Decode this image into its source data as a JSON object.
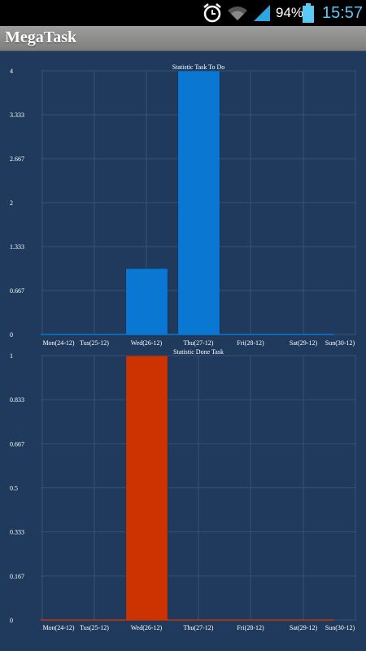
{
  "status_bar": {
    "battery_percent": "94%",
    "time": "15:57",
    "icons": [
      "alarm-icon",
      "wifi-icon",
      "signal-icon",
      "battery-icon"
    ],
    "clock_color": "#5bc8f5"
  },
  "app": {
    "title": "MegaTask"
  },
  "colors": {
    "background": "#1f3a5c",
    "grid": "#3a5270",
    "todo_bar": "#0a78d2",
    "done_bar": "#cc3300",
    "text": "#ffffff"
  },
  "chart_data": [
    {
      "type": "bar",
      "title": "Statistic Task To Do",
      "categories": [
        "Mon(24-12)",
        "Tus(25-12)",
        "Wed(26-12)",
        "Thu(27-12)",
        "Fri(28-12)",
        "Sat(29-12)",
        "Sun(30-12)"
      ],
      "values": [
        0,
        0,
        1,
        4,
        0,
        0,
        0
      ],
      "ylim": [
        0,
        4
      ],
      "yticks": [
        "0",
        "0.667",
        "1.333",
        "2",
        "2.667",
        "3.333",
        "4"
      ],
      "grid": true,
      "color": "#0a78d2"
    },
    {
      "type": "bar",
      "title": "Statistic Done Task",
      "categories": [
        "Mon(24-12)",
        "Tus(25-12)",
        "Wed(26-12)",
        "Thu(27-12)",
        "Fri(28-12)",
        "Sat(29-12)",
        "Sun(30-12)"
      ],
      "values": [
        0,
        0,
        1,
        0,
        0,
        0,
        0
      ],
      "ylim": [
        0,
        1
      ],
      "yticks": [
        "0",
        "0.167",
        "0.333",
        "0.5",
        "0.667",
        "0.833",
        "1"
      ],
      "grid": true,
      "color": "#cc3300"
    }
  ]
}
